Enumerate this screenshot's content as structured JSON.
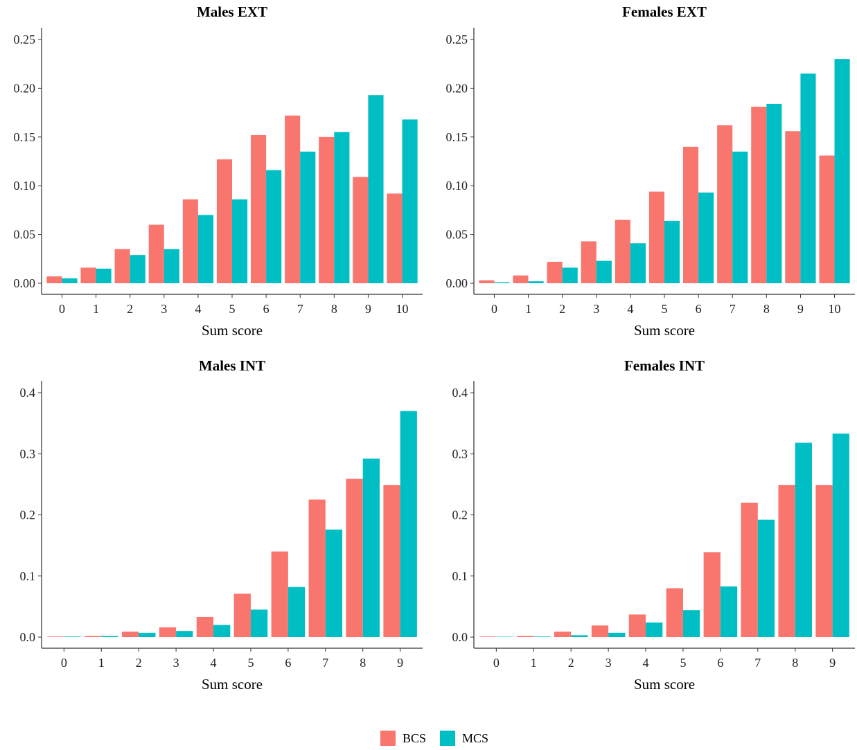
{
  "chart_data": [
    {
      "type": "bar",
      "title": "Males EXT",
      "xlabel": "Sum score",
      "ylabel": "",
      "categories": [
        "0",
        "1",
        "2",
        "3",
        "4",
        "5",
        "6",
        "7",
        "8",
        "9",
        "10"
      ],
      "ylim": [
        0,
        0.25
      ],
      "yticks": [
        "0.00",
        "0.05",
        "0.10",
        "0.15",
        "0.20",
        "0.25"
      ],
      "series": [
        {
          "name": "BCS",
          "values": [
            0.007,
            0.016,
            0.035,
            0.06,
            0.086,
            0.127,
            0.152,
            0.172,
            0.15,
            0.109,
            0.092
          ]
        },
        {
          "name": "MCS",
          "values": [
            0.005,
            0.015,
            0.029,
            0.035,
            0.07,
            0.086,
            0.116,
            0.135,
            0.155,
            0.193,
            0.168
          ]
        }
      ]
    },
    {
      "type": "bar",
      "title": "Females EXT",
      "xlabel": "Sum score",
      "ylabel": "",
      "categories": [
        "0",
        "1",
        "2",
        "3",
        "4",
        "5",
        "6",
        "7",
        "8",
        "9",
        "10"
      ],
      "ylim": [
        0,
        0.25
      ],
      "yticks": [
        "0.00",
        "0.05",
        "0.10",
        "0.15",
        "0.20",
        "0.25"
      ],
      "series": [
        {
          "name": "BCS",
          "values": [
            0.003,
            0.008,
            0.022,
            0.043,
            0.065,
            0.094,
            0.14,
            0.162,
            0.181,
            0.156,
            0.131
          ]
        },
        {
          "name": "MCS",
          "values": [
            0.001,
            0.002,
            0.016,
            0.023,
            0.041,
            0.064,
            0.093,
            0.135,
            0.184,
            0.215,
            0.23
          ]
        }
      ]
    },
    {
      "type": "bar",
      "title": "Males INT",
      "xlabel": "Sum score",
      "ylabel": "",
      "categories": [
        "0",
        "1",
        "2",
        "3",
        "4",
        "5",
        "6",
        "7",
        "8",
        "9"
      ],
      "ylim": [
        0,
        0.4
      ],
      "yticks": [
        "0.0",
        "0.1",
        "0.2",
        "0.3",
        "0.4"
      ],
      "series": [
        {
          "name": "BCS",
          "values": [
            0.001,
            0.002,
            0.009,
            0.016,
            0.033,
            0.071,
            0.14,
            0.225,
            0.259,
            0.249
          ]
        },
        {
          "name": "MCS",
          "values": [
            0.001,
            0.002,
            0.007,
            0.01,
            0.02,
            0.045,
            0.082,
            0.176,
            0.292,
            0.37
          ]
        }
      ]
    },
    {
      "type": "bar",
      "title": "Females INT",
      "xlabel": "Sum score",
      "ylabel": "",
      "categories": [
        "0",
        "1",
        "2",
        "3",
        "4",
        "5",
        "6",
        "7",
        "8",
        "9"
      ],
      "ylim": [
        0,
        0.4
      ],
      "yticks": [
        "0.0",
        "0.1",
        "0.2",
        "0.3",
        "0.4"
      ],
      "series": [
        {
          "name": "BCS",
          "values": [
            0.001,
            0.002,
            0.009,
            0.019,
            0.037,
            0.08,
            0.139,
            0.22,
            0.249,
            0.249
          ]
        },
        {
          "name": "MCS",
          "values": [
            0.0,
            0.001,
            0.003,
            0.007,
            0.024,
            0.044,
            0.083,
            0.192,
            0.318,
            0.333
          ]
        }
      ]
    }
  ],
  "legend": {
    "position": "bottom",
    "entries": [
      {
        "label": "BCS",
        "color": "#F8766D"
      },
      {
        "label": "MCS",
        "color": "#00BFC4"
      }
    ]
  },
  "colors": {
    "BCS": "#F8766D",
    "MCS": "#00BFC4"
  }
}
